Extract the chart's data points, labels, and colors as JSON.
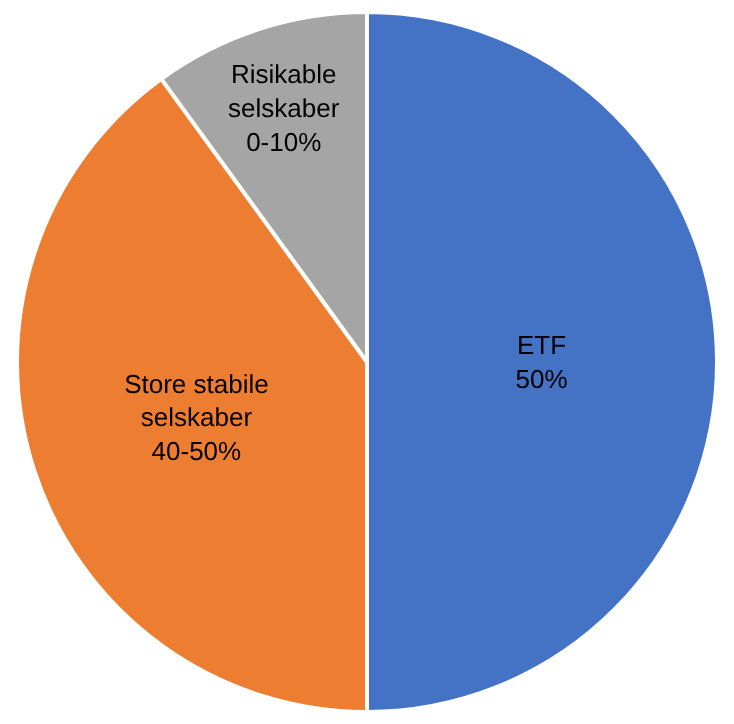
{
  "chart_data": {
    "type": "pie",
    "categories": [
      "ETF\n50%",
      "Store stabile\nselskaber\n40-50%",
      "Risikable\nselskaber\n0-10%"
    ],
    "values": [
      50,
      40,
      10
    ],
    "colors": [
      "#4472c4",
      "#ed7d31",
      "#a5a5a5"
    ],
    "legend": false
  }
}
